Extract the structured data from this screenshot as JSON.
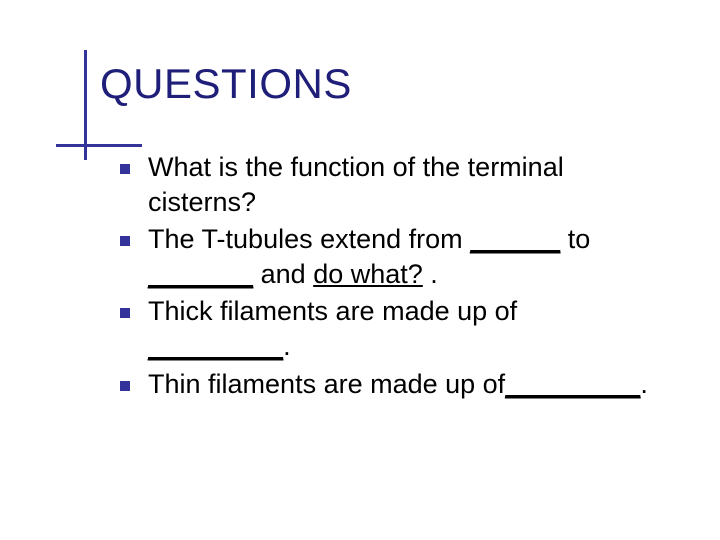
{
  "slide": {
    "title": "QUESTIONS",
    "title_color": "#1f1f7a",
    "accent_color": "#333399",
    "background_color": "#ffffff",
    "text_color": "#000000",
    "title_fontsize": 42,
    "body_fontsize": 27,
    "bullets": [
      {
        "pre": "What is the function of the terminal cisterns?",
        "underlined1": "",
        "mid": "",
        "underlined2": "",
        "post": ""
      },
      {
        "pre": "The T-tubules extend from ",
        "underlined1": "______",
        "mid": " to ",
        "underlined2": "_______",
        "post": " and ",
        "underlined3": "do  what?",
        "tail": " ."
      },
      {
        "pre": "Thick filaments are made up of ",
        "underlined1": "_________",
        "mid": ".",
        "underlined2": "",
        "post": ""
      },
      {
        "pre": "Thin filaments are made up of",
        "underlined1": "_________",
        "mid": ".",
        "underlined2": "",
        "post": ""
      }
    ]
  }
}
